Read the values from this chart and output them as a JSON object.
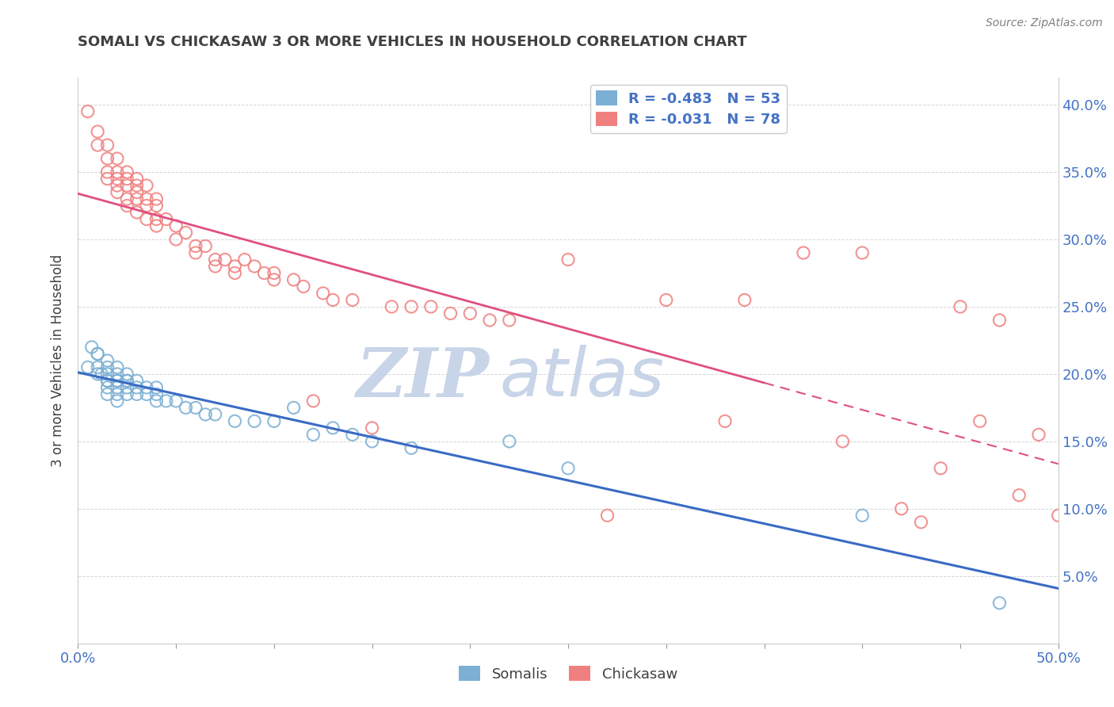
{
  "title": "SOMALI VS CHICKASAW 3 OR MORE VEHICLES IN HOUSEHOLD CORRELATION CHART",
  "source": "Source: ZipAtlas.com",
  "xlabel": "",
  "ylabel": "3 or more Vehicles in Household",
  "xlim": [
    0.0,
    0.5
  ],
  "ylim": [
    0.0,
    0.42
  ],
  "xticks": [
    0.0,
    0.05,
    0.1,
    0.15,
    0.2,
    0.25,
    0.3,
    0.35,
    0.4,
    0.45,
    0.5
  ],
  "yticks": [
    0.0,
    0.05,
    0.1,
    0.15,
    0.2,
    0.25,
    0.3,
    0.35,
    0.4
  ],
  "somali_color": "#7bafd4",
  "chickasaw_color": "#f08080",
  "somali_line_color": "#3a6bc4",
  "chickasaw_line_color": "#e05080",
  "R_somali": -0.483,
  "N_somali": 53,
  "R_chickasaw": -0.031,
  "N_chickasaw": 78,
  "somali_scatter": [
    [
      0.005,
      0.205
    ],
    [
      0.007,
      0.22
    ],
    [
      0.01,
      0.215
    ],
    [
      0.01,
      0.215
    ],
    [
      0.01,
      0.205
    ],
    [
      0.01,
      0.2
    ],
    [
      0.012,
      0.2
    ],
    [
      0.015,
      0.21
    ],
    [
      0.015,
      0.205
    ],
    [
      0.015,
      0.2
    ],
    [
      0.015,
      0.195
    ],
    [
      0.015,
      0.195
    ],
    [
      0.015,
      0.19
    ],
    [
      0.015,
      0.185
    ],
    [
      0.02,
      0.205
    ],
    [
      0.02,
      0.2
    ],
    [
      0.02,
      0.195
    ],
    [
      0.02,
      0.195
    ],
    [
      0.02,
      0.19
    ],
    [
      0.02,
      0.185
    ],
    [
      0.02,
      0.18
    ],
    [
      0.025,
      0.2
    ],
    [
      0.025,
      0.195
    ],
    [
      0.025,
      0.195
    ],
    [
      0.025,
      0.19
    ],
    [
      0.025,
      0.185
    ],
    [
      0.03,
      0.195
    ],
    [
      0.03,
      0.19
    ],
    [
      0.03,
      0.185
    ],
    [
      0.035,
      0.19
    ],
    [
      0.035,
      0.185
    ],
    [
      0.04,
      0.19
    ],
    [
      0.04,
      0.185
    ],
    [
      0.04,
      0.18
    ],
    [
      0.045,
      0.18
    ],
    [
      0.05,
      0.18
    ],
    [
      0.055,
      0.175
    ],
    [
      0.06,
      0.175
    ],
    [
      0.065,
      0.17
    ],
    [
      0.07,
      0.17
    ],
    [
      0.08,
      0.165
    ],
    [
      0.09,
      0.165
    ],
    [
      0.1,
      0.165
    ],
    [
      0.11,
      0.175
    ],
    [
      0.12,
      0.155
    ],
    [
      0.13,
      0.16
    ],
    [
      0.14,
      0.155
    ],
    [
      0.15,
      0.15
    ],
    [
      0.17,
      0.145
    ],
    [
      0.22,
      0.15
    ],
    [
      0.25,
      0.13
    ],
    [
      0.4,
      0.095
    ],
    [
      0.47,
      0.03
    ]
  ],
  "chickasaw_scatter": [
    [
      0.005,
      0.395
    ],
    [
      0.01,
      0.38
    ],
    [
      0.01,
      0.37
    ],
    [
      0.015,
      0.37
    ],
    [
      0.015,
      0.36
    ],
    [
      0.015,
      0.35
    ],
    [
      0.015,
      0.345
    ],
    [
      0.02,
      0.36
    ],
    [
      0.02,
      0.35
    ],
    [
      0.02,
      0.345
    ],
    [
      0.02,
      0.34
    ],
    [
      0.02,
      0.335
    ],
    [
      0.025,
      0.35
    ],
    [
      0.025,
      0.345
    ],
    [
      0.025,
      0.34
    ],
    [
      0.025,
      0.33
    ],
    [
      0.025,
      0.325
    ],
    [
      0.03,
      0.345
    ],
    [
      0.03,
      0.34
    ],
    [
      0.03,
      0.335
    ],
    [
      0.03,
      0.33
    ],
    [
      0.03,
      0.32
    ],
    [
      0.035,
      0.34
    ],
    [
      0.035,
      0.33
    ],
    [
      0.035,
      0.325
    ],
    [
      0.035,
      0.315
    ],
    [
      0.04,
      0.33
    ],
    [
      0.04,
      0.325
    ],
    [
      0.04,
      0.315
    ],
    [
      0.04,
      0.31
    ],
    [
      0.045,
      0.315
    ],
    [
      0.05,
      0.31
    ],
    [
      0.05,
      0.3
    ],
    [
      0.055,
      0.305
    ],
    [
      0.06,
      0.295
    ],
    [
      0.06,
      0.29
    ],
    [
      0.065,
      0.295
    ],
    [
      0.07,
      0.285
    ],
    [
      0.07,
      0.28
    ],
    [
      0.075,
      0.285
    ],
    [
      0.08,
      0.28
    ],
    [
      0.08,
      0.275
    ],
    [
      0.085,
      0.285
    ],
    [
      0.09,
      0.28
    ],
    [
      0.095,
      0.275
    ],
    [
      0.1,
      0.275
    ],
    [
      0.1,
      0.27
    ],
    [
      0.11,
      0.27
    ],
    [
      0.115,
      0.265
    ],
    [
      0.12,
      0.18
    ],
    [
      0.125,
      0.26
    ],
    [
      0.13,
      0.255
    ],
    [
      0.14,
      0.255
    ],
    [
      0.15,
      0.16
    ],
    [
      0.16,
      0.25
    ],
    [
      0.17,
      0.25
    ],
    [
      0.18,
      0.25
    ],
    [
      0.19,
      0.245
    ],
    [
      0.2,
      0.245
    ],
    [
      0.21,
      0.24
    ],
    [
      0.22,
      0.24
    ],
    [
      0.25,
      0.285
    ],
    [
      0.27,
      0.095
    ],
    [
      0.3,
      0.255
    ],
    [
      0.33,
      0.165
    ],
    [
      0.34,
      0.255
    ],
    [
      0.37,
      0.29
    ],
    [
      0.39,
      0.15
    ],
    [
      0.4,
      0.29
    ],
    [
      0.42,
      0.1
    ],
    [
      0.43,
      0.09
    ],
    [
      0.44,
      0.13
    ],
    [
      0.45,
      0.25
    ],
    [
      0.46,
      0.165
    ],
    [
      0.47,
      0.24
    ],
    [
      0.48,
      0.11
    ],
    [
      0.49,
      0.155
    ],
    [
      0.5,
      0.095
    ]
  ],
  "background_color": "#ffffff",
  "grid_color": "#cccccc",
  "title_color": "#404040",
  "watermark_zip": "ZIP",
  "watermark_atlas": "atlas",
  "watermark_color": "#c8d4e8"
}
